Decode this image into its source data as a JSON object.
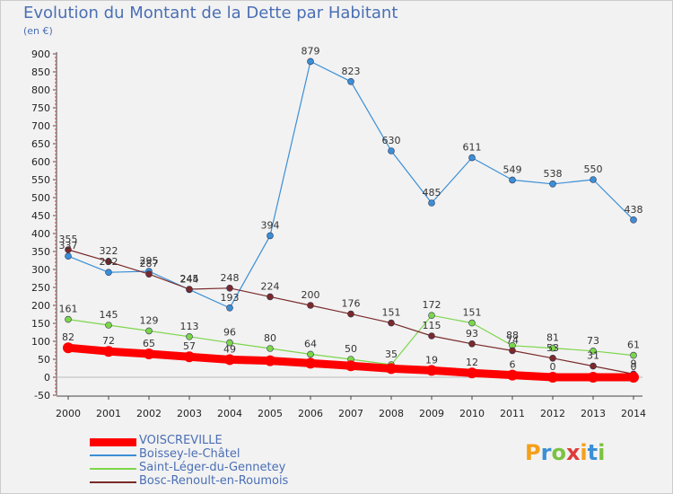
{
  "title": "Evolution du Montant de la Dette par Habitant",
  "unit": "(en €)",
  "logo": "Proxiti",
  "logo_colors": [
    "#f5a01a",
    "#3a8fd6",
    "#7cc242",
    "#e03a3a",
    "#f5a01a",
    "#3a8fd6",
    "#7cc242"
  ],
  "chart_data": {
    "type": "line",
    "x": [
      "2000",
      "2001",
      "2002",
      "2003",
      "2004",
      "2005",
      "2006",
      "2007",
      "2008",
      "2009",
      "2010",
      "2011",
      "2012",
      "2013",
      "2014"
    ],
    "ylim": [
      -50,
      900
    ],
    "yticks": [
      -50,
      0,
      50,
      100,
      150,
      200,
      250,
      300,
      350,
      400,
      450,
      500,
      550,
      600,
      650,
      700,
      750,
      800,
      850,
      900
    ],
    "grid": false,
    "legend_position": "bottom-left",
    "series": [
      {
        "name": "VOISCREVILLE",
        "color": "#ff0000",
        "values": [
          82,
          72,
          65,
          57,
          49,
          46,
          39,
          32,
          24,
          19,
          12,
          6,
          0,
          0,
          0
        ],
        "labels": [
          "82",
          "72",
          "65",
          "57",
          "49",
          "",
          "",
          "",
          "",
          "19",
          "12",
          "6",
          "0",
          "",
          "0"
        ]
      },
      {
        "name": "Boissey-le-Châtel",
        "color": "#3a8fd6",
        "values": [
          337,
          292,
          295,
          244,
          193,
          394,
          879,
          823,
          630,
          485,
          611,
          549,
          538,
          550,
          438
        ],
        "labels": [
          "337",
          "292",
          "295",
          "244",
          "193",
          "394",
          "879",
          "823",
          "630",
          "485",
          "611",
          "549",
          "538",
          "550",
          "438"
        ]
      },
      {
        "name": "Saint-Léger-du-Gennetey",
        "color": "#7cd64a",
        "values": [
          161,
          145,
          129,
          113,
          96,
          80,
          64,
          50,
          35,
          172,
          151,
          88,
          81,
          73,
          61
        ],
        "labels": [
          "161",
          "145",
          "129",
          "113",
          "96",
          "80",
          "64",
          "50",
          "35",
          "172",
          "151",
          "88",
          "81",
          "73",
          "61"
        ]
      },
      {
        "name": "Bosc-Renoult-en-Roumois",
        "color": "#7a2a2a",
        "values": [
          355,
          322,
          287,
          245,
          248,
          224,
          200,
          176,
          151,
          115,
          93,
          74,
          53,
          31,
          9
        ],
        "labels": [
          "355",
          "322",
          "287",
          "245",
          "248",
          "224",
          "200",
          "176",
          "151",
          "115",
          "93",
          "74",
          "53",
          "31",
          "9"
        ]
      }
    ]
  }
}
